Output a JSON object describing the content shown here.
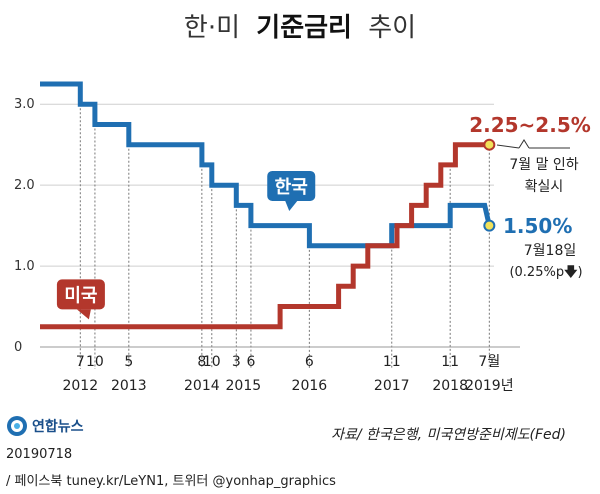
{
  "title": {
    "part1": "한·미",
    "part2": "기준금리",
    "part3": "추이"
  },
  "source": "자료/ 한국은행, 미국연방준비제도(Fed)",
  "logo_text": "연합뉴스",
  "logo_icon": "yonhap-logo-icon",
  "footer": {
    "date": "20190718",
    "social": "/ 페이스북 tuney.kr/LeYN1, 트위터 @yonhap_graphics"
  },
  "colors": {
    "korea": "#1f6fb2",
    "us": "#b3372c",
    "grid": "#888888",
    "tick": "#666666"
  },
  "chart_data": {
    "type": "line",
    "title": "한·미 기준금리 추이",
    "ylim": [
      0,
      3.25
    ],
    "yticks": [
      {
        "v": 0,
        "label": "0"
      },
      {
        "v": 1.0,
        "label": "1.0"
      },
      {
        "v": 2.0,
        "label": "2.0"
      },
      {
        "v": 3.0,
        "label": "3.0"
      }
    ],
    "xlim": [
      2011.85,
      2019.62
    ],
    "month_ticks": [
      {
        "x": 2012.54,
        "label": "7"
      },
      {
        "x": 2012.79,
        "label": "10"
      },
      {
        "x": 2013.37,
        "label": "5"
      },
      {
        "x": 2014.62,
        "label": "8"
      },
      {
        "x": 2014.79,
        "label": "10"
      },
      {
        "x": 2015.21,
        "label": "3"
      },
      {
        "x": 2015.46,
        "label": "6"
      },
      {
        "x": 2016.46,
        "label": "6"
      },
      {
        "x": 2017.87,
        "label": "11"
      },
      {
        "x": 2018.87,
        "label": "11"
      },
      {
        "x": 2019.54,
        "label": "7월"
      }
    ],
    "year_labels": [
      {
        "x": 2012.54,
        "label": "2012"
      },
      {
        "x": 2013.37,
        "label": "2013"
      },
      {
        "x": 2014.62,
        "label": "2014"
      },
      {
        "x": 2015.33,
        "label": "2015"
      },
      {
        "x": 2016.46,
        "label": "2016"
      },
      {
        "x": 2017.87,
        "label": "2017"
      },
      {
        "x": 2018.87,
        "label": "2018"
      },
      {
        "x": 2019.54,
        "label": "2019년"
      }
    ],
    "ref_lines": [
      {
        "x": 2012.54,
        "from": "korea"
      },
      {
        "x": 2012.79,
        "from": "korea"
      },
      {
        "x": 2013.37,
        "from": "korea"
      },
      {
        "x": 2014.62,
        "from": "korea"
      },
      {
        "x": 2014.79,
        "from": "korea"
      },
      {
        "x": 2015.21,
        "from": "korea"
      },
      {
        "x": 2015.46,
        "from": "korea"
      },
      {
        "x": 2016.46,
        "from": "korea"
      },
      {
        "x": 2017.87,
        "from": "korea"
      },
      {
        "x": 2018.87,
        "from": "us"
      },
      {
        "x": 2019.54,
        "from": "us"
      }
    ],
    "series": [
      {
        "name": "한국",
        "key": "korea",
        "points": [
          [
            2011.85,
            3.25
          ],
          [
            2012.54,
            3.25
          ],
          [
            2012.54,
            3.0
          ],
          [
            2012.79,
            3.0
          ],
          [
            2012.79,
            2.75
          ],
          [
            2013.37,
            2.75
          ],
          [
            2013.37,
            2.5
          ],
          [
            2014.62,
            2.5
          ],
          [
            2014.62,
            2.25
          ],
          [
            2014.79,
            2.25
          ],
          [
            2014.79,
            2.0
          ],
          [
            2015.21,
            2.0
          ],
          [
            2015.21,
            1.75
          ],
          [
            2015.46,
            1.75
          ],
          [
            2015.46,
            1.5
          ],
          [
            2016.46,
            1.5
          ],
          [
            2016.46,
            1.25
          ],
          [
            2017.87,
            1.25
          ],
          [
            2017.87,
            1.5
          ],
          [
            2018.87,
            1.5
          ],
          [
            2018.87,
            1.75
          ],
          [
            2019.46,
            1.75
          ],
          [
            2019.54,
            1.5
          ]
        ]
      },
      {
        "name": "미국",
        "key": "us",
        "points": [
          [
            2011.85,
            0.25
          ],
          [
            2015.96,
            0.25
          ],
          [
            2015.96,
            0.5
          ],
          [
            2016.96,
            0.5
          ],
          [
            2016.96,
            0.75
          ],
          [
            2017.21,
            0.75
          ],
          [
            2017.21,
            1.0
          ],
          [
            2017.46,
            1.0
          ],
          [
            2017.46,
            1.25
          ],
          [
            2017.96,
            1.25
          ],
          [
            2017.96,
            1.5
          ],
          [
            2018.21,
            1.5
          ],
          [
            2018.21,
            1.75
          ],
          [
            2018.46,
            1.75
          ],
          [
            2018.46,
            2.0
          ],
          [
            2018.71,
            2.0
          ],
          [
            2018.71,
            2.25
          ],
          [
            2018.96,
            2.25
          ],
          [
            2018.96,
            2.5
          ],
          [
            2019.54,
            2.5
          ]
        ]
      }
    ],
    "series_labels": {
      "korea": {
        "text": "한국",
        "x": 2016.15,
        "y": 1.99
      },
      "us": {
        "text": "미국",
        "x": 2012.55,
        "y": 0.65
      }
    },
    "annotations": {
      "us_value": "2.25~2.5%",
      "us_note_1": "7월 말 인하",
      "us_note_2": "확실시",
      "kr_value": "1.50%",
      "kr_note_1": "7월18일",
      "kr_note_2": "(0.25%p",
      "kr_note_arrow": "🡇",
      "kr_note_3": ")"
    }
  }
}
